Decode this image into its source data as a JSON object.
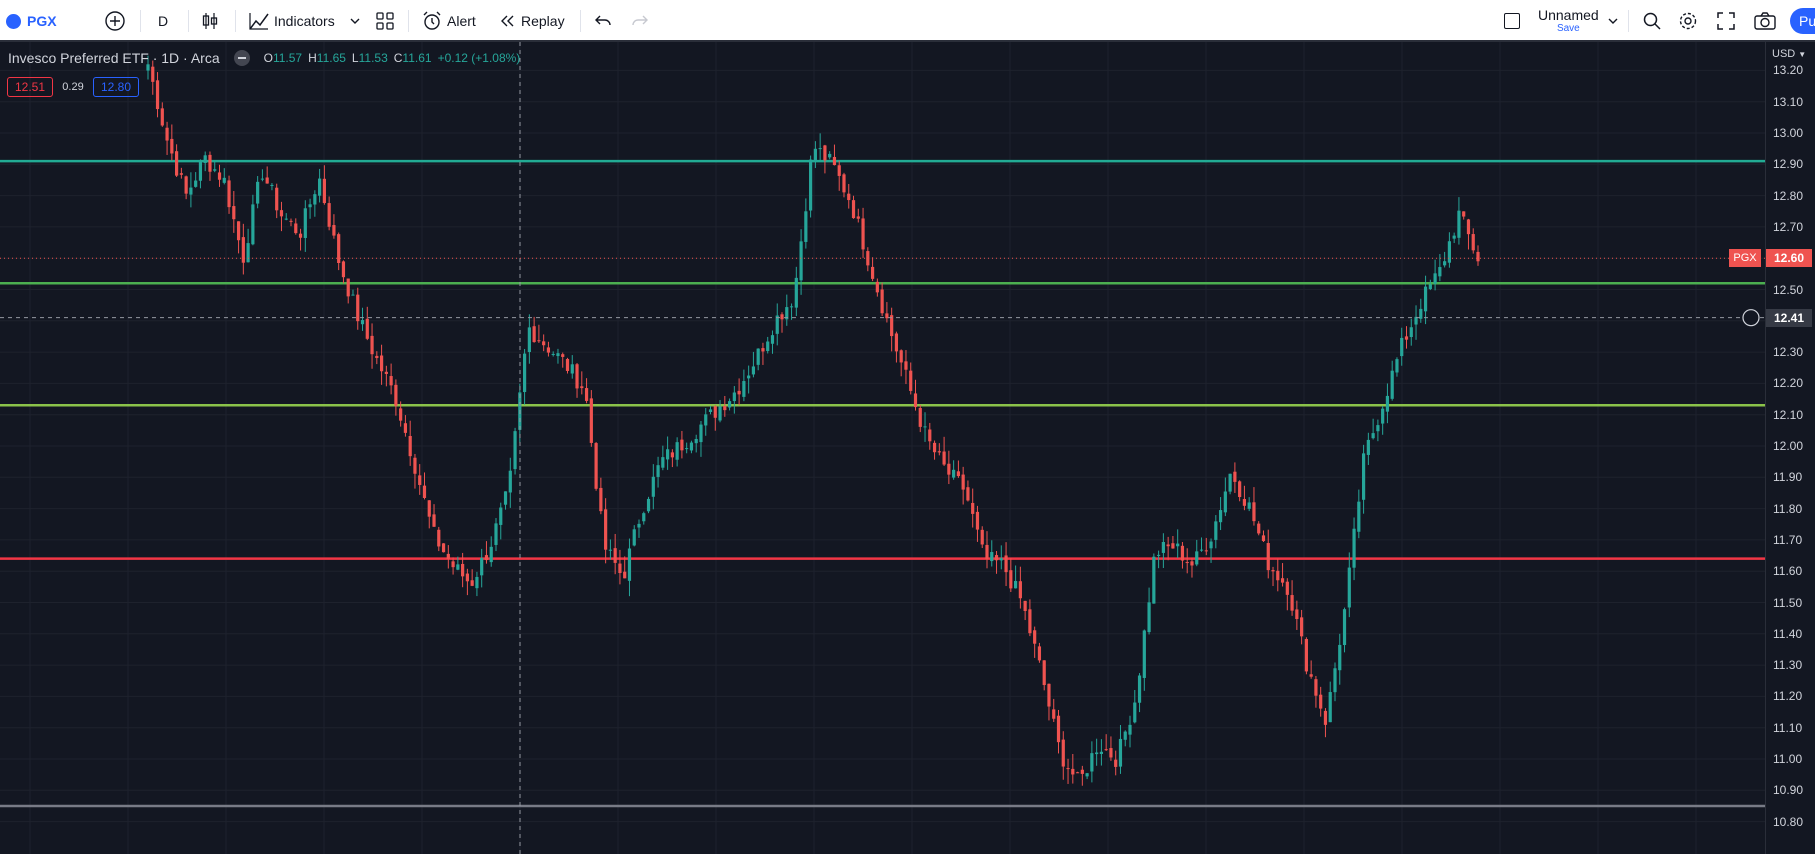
{
  "toolbar": {
    "symbol": "PGX",
    "interval": "D",
    "indicators_label": "Indicators",
    "alert_label": "Alert",
    "replay_label": "Replay",
    "layout_name": "Unnamed",
    "save_label": "Save",
    "publish_label": "Pu"
  },
  "legend": {
    "title": "Invesco Preferred ETF · 1D · Arca",
    "o_label": "O",
    "o": "11.57",
    "h_label": "H",
    "h": "11.65",
    "l_label": "L",
    "l": "11.53",
    "c_label": "C",
    "c": "11.61",
    "change": "+0.12 (+1.08%)",
    "bid": "12.51",
    "spread": "0.29",
    "ask": "12.80"
  },
  "axis": {
    "currency": "USD",
    "ticks": [
      "13.20",
      "13.10",
      "13.00",
      "12.90",
      "12.80",
      "12.70",
      "12.60",
      "12.50",
      "12.40",
      "12.30",
      "12.20",
      "12.10",
      "12.00",
      "11.90",
      "11.80",
      "11.70",
      "11.60",
      "11.50",
      "11.40",
      "11.30",
      "11.20",
      "11.10",
      "11.00",
      "10.90",
      "10.80"
    ],
    "last_price_symbol": "PGX",
    "last_price": "12.60",
    "crosshair_price": "12.41"
  },
  "colors": {
    "up": "#26a69a",
    "down": "#ef5350",
    "background": "#131722",
    "grid": "#1e222d",
    "line_teal": "#22ab94",
    "line_green": "#4caf50",
    "line_olive": "#8bc34a",
    "line_red": "#f23645",
    "line_gray": "#787b86"
  },
  "chart_data": {
    "type": "candlestick",
    "title": "Invesco Preferred ETF · 1D · Arca",
    "ylim": [
      10.78,
      13.22
    ],
    "horizontal_levels": [
      {
        "price": 12.91,
        "color": "#22ab94"
      },
      {
        "price": 12.52,
        "color": "#4caf50"
      },
      {
        "price": 12.13,
        "color": "#8bc34a"
      },
      {
        "price": 11.64,
        "color": "#f23645"
      },
      {
        "price": 10.85,
        "color": "#787b86"
      }
    ],
    "last_price": 12.6,
    "crosshair_price": 12.41,
    "anchors": [
      13.22,
      12.98,
      12.8,
      12.92,
      12.85,
      12.6,
      12.88,
      12.74,
      12.68,
      12.86,
      12.6,
      12.42,
      12.28,
      12.16,
      11.95,
      11.72,
      11.62,
      11.56,
      11.68,
      11.86,
      12.38,
      12.32,
      12.26,
      12.18,
      11.68,
      11.58,
      11.8,
      11.95,
      12.0,
      12.06,
      12.12,
      12.18,
      12.28,
      12.4,
      12.48,
      12.96,
      12.9,
      12.78,
      12.58,
      12.38,
      12.2,
      12.02,
      11.92,
      11.86,
      11.64,
      11.62,
      11.5,
      11.28,
      11.02,
      10.92,
      11.05,
      11.0,
      11.2,
      11.66,
      11.68,
      11.62,
      11.72,
      11.92,
      11.8,
      11.62,
      11.55,
      11.3,
      11.12,
      11.48,
      11.96,
      12.14,
      12.32,
      12.46,
      12.56,
      12.74,
      12.6
    ]
  }
}
